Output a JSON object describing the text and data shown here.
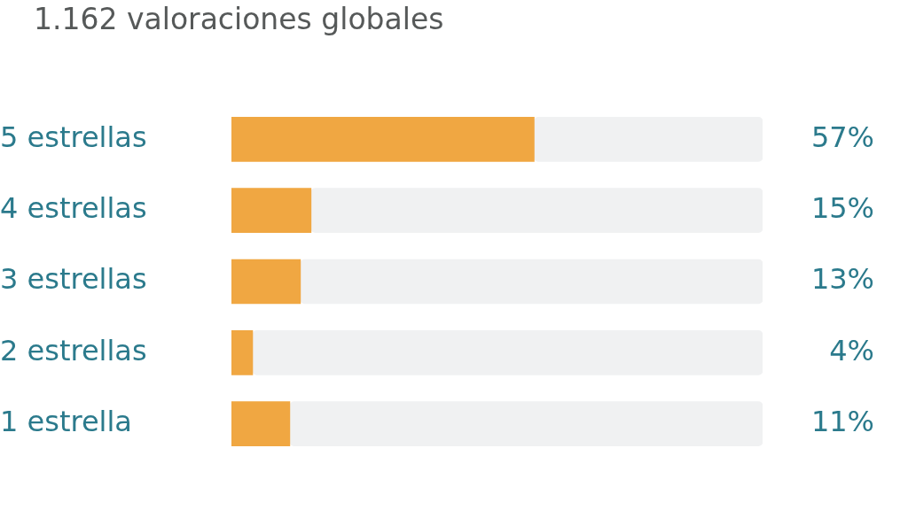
{
  "chart_data": {
    "type": "bar",
    "orientation": "horizontal",
    "stacked": true,
    "title": "1.162 valoraciones globales",
    "categories": [
      "5 estrellas",
      "4 estrellas",
      "3 estrellas",
      "2 estrellas",
      "1 estrella"
    ],
    "series": [
      {
        "color": "#f0a742",
        "values": [
          57,
          15,
          13,
          4,
          11
        ],
        "value_labels": [
          "57%",
          "15%",
          "13%",
          "4%",
          "11%"
        ]
      },
      {
        "color": "#f0f1f2",
        "values": [
          43,
          85,
          87,
          96,
          89
        ]
      }
    ],
    "tick_labels": "y",
    "legend": false
  }
}
